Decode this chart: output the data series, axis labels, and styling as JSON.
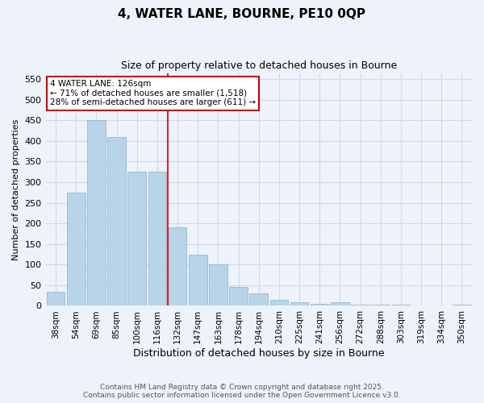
{
  "title_line1": "4, WATER LANE, BOURNE, PE10 0QP",
  "title_line2": "Size of property relative to detached houses in Bourne",
  "xlabel": "Distribution of detached houses by size in Bourne",
  "ylabel": "Number of detached properties",
  "categories": [
    "38sqm",
    "54sqm",
    "69sqm",
    "85sqm",
    "100sqm",
    "116sqm",
    "132sqm",
    "147sqm",
    "163sqm",
    "178sqm",
    "194sqm",
    "210sqm",
    "225sqm",
    "241sqm",
    "256sqm",
    "272sqm",
    "288sqm",
    "303sqm",
    "319sqm",
    "334sqm",
    "350sqm"
  ],
  "values": [
    35,
    275,
    450,
    410,
    325,
    325,
    190,
    125,
    100,
    45,
    30,
    15,
    8,
    5,
    8,
    3,
    2,
    2,
    1,
    1,
    2
  ],
  "bar_color": "#b8d4e8",
  "bar_edge_color": "#8ab0cc",
  "bg_color": "#eef2fa",
  "grid_color": "#d0d8e8",
  "vline_x_index": 6,
  "vline_color": "#cc0000",
  "annotation_text": "4 WATER LANE: 126sqm\n← 71% of detached houses are smaller (1,518)\n28% of semi-detached houses are larger (611) →",
  "annotation_box_color": "#ffffff",
  "annotation_box_edge": "#cc0000",
  "ylim": [
    0,
    565
  ],
  "yticks": [
    0,
    50,
    100,
    150,
    200,
    250,
    300,
    350,
    400,
    450,
    500,
    550
  ],
  "footer_line1": "Contains HM Land Registry data © Crown copyright and database right 2025.",
  "footer_line2": "Contains public sector information licensed under the Open Government Licence v3.0."
}
